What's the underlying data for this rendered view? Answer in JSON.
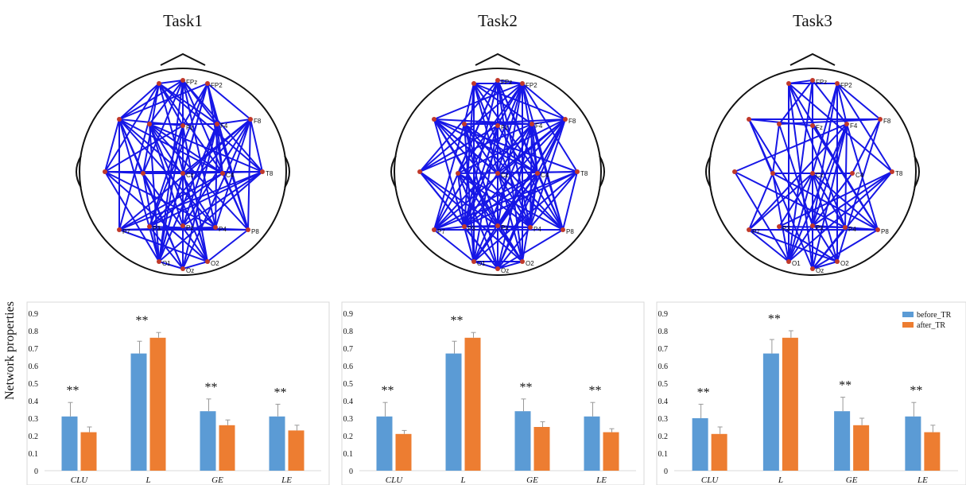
{
  "tasks": [
    "Task1",
    "Task2",
    "Task3"
  ],
  "electrodes": [
    "FPz",
    "FP2",
    "F8",
    "T8",
    "P8",
    "O2",
    "Oz",
    "O1",
    "P7",
    "P3",
    "Pz",
    "P4",
    "C4",
    "Cz",
    "F4",
    "Fz"
  ],
  "edge_color": "#1616e6",
  "node_color": "#c0392b",
  "ylabel": "Network properties",
  "legend": [
    "before_TR",
    "after_TR"
  ],
  "series_colors": [
    "#5b9bd5",
    "#ed7d31"
  ],
  "significance": "**",
  "chart_data": [
    {
      "type": "bar",
      "title": "",
      "categories": [
        "CLU",
        "L",
        "GE",
        "LE"
      ],
      "ylim": [
        0,
        0.9
      ],
      "yticks": [
        "0",
        "0.1",
        "0.2",
        "0.3",
        "0.4",
        "0.5",
        "0.6",
        "0.7",
        "0.8",
        "0.9"
      ],
      "series": [
        {
          "name": "before_TR",
          "values": [
            0.31,
            0.67,
            0.34,
            0.31
          ],
          "errors": [
            0.08,
            0.07,
            0.07,
            0.07
          ]
        },
        {
          "name": "after_TR",
          "values": [
            0.22,
            0.76,
            0.26,
            0.23
          ],
          "errors": [
            0.03,
            0.03,
            0.03,
            0.03
          ]
        }
      ],
      "annotations": [
        "**",
        "**",
        "**",
        "**"
      ]
    },
    {
      "type": "bar",
      "title": "",
      "categories": [
        "CLU",
        "L",
        "GE",
        "LE"
      ],
      "ylim": [
        0,
        0.9
      ],
      "yticks": [
        "0",
        "0.1",
        "0.2",
        "0.3",
        "0.4",
        "0.5",
        "0.6",
        "0.7",
        "0.8",
        "0.9"
      ],
      "series": [
        {
          "name": "before_TR",
          "values": [
            0.31,
            0.67,
            0.34,
            0.31
          ],
          "errors": [
            0.08,
            0.07,
            0.07,
            0.08
          ]
        },
        {
          "name": "after_TR",
          "values": [
            0.21,
            0.76,
            0.25,
            0.22
          ],
          "errors": [
            0.02,
            0.03,
            0.03,
            0.02
          ]
        }
      ],
      "annotations": [
        "**",
        "**",
        "**",
        "**"
      ]
    },
    {
      "type": "bar",
      "title": "",
      "categories": [
        "CLU",
        "L",
        "GE",
        "LE"
      ],
      "ylim": [
        0,
        0.9
      ],
      "yticks": [
        "0",
        "0.1",
        "0.2",
        "0.3",
        "0.4",
        "0.5",
        "0.6",
        "0.7",
        "0.8",
        "0.9"
      ],
      "series": [
        {
          "name": "before_TR",
          "values": [
            0.3,
            0.67,
            0.34,
            0.31
          ],
          "errors": [
            0.08,
            0.08,
            0.08,
            0.08
          ]
        },
        {
          "name": "after_TR",
          "values": [
            0.21,
            0.76,
            0.26,
            0.22
          ],
          "errors": [
            0.04,
            0.04,
            0.04,
            0.04
          ]
        }
      ],
      "annotations": [
        "**",
        "**",
        "**",
        "**"
      ]
    }
  ]
}
